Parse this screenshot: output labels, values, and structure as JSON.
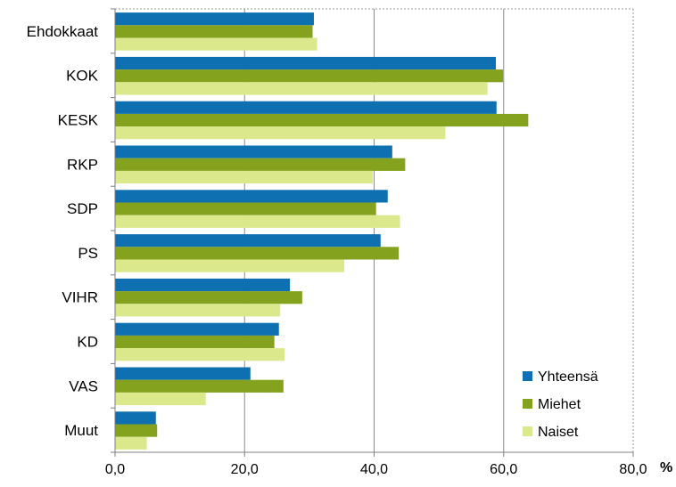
{
  "chart_data": {
    "type": "bar",
    "orientation": "horizontal",
    "categories": [
      "Ehdokkaat",
      "KOK",
      "KESK",
      "RKP",
      "SDP",
      "PS",
      "VIHR",
      "KD",
      "VAS",
      "Muut"
    ],
    "series": [
      {
        "name": "Yhteensä",
        "color": "#0e6fb1",
        "values": [
          30.7,
          58.8,
          58.9,
          42.8,
          42.1,
          41.0,
          27.0,
          25.3,
          20.9,
          6.3
        ]
      },
      {
        "name": "Miehet",
        "color": "#84a21e",
        "values": [
          30.5,
          59.9,
          63.8,
          44.8,
          40.3,
          43.8,
          28.9,
          24.6,
          26.0,
          6.5
        ]
      },
      {
        "name": "Naiset",
        "color": "#dbe98c",
        "values": [
          31.2,
          57.5,
          51.0,
          39.8,
          44.0,
          35.4,
          25.5,
          26.2,
          14.0,
          4.9
        ]
      }
    ],
    "xlim": [
      0,
      80
    ],
    "xticks": [
      "0,0",
      "20,0",
      "40,0",
      "60,0",
      "80,0"
    ],
    "xunit": "%",
    "grid": true,
    "legend_position": "bottom-right"
  }
}
